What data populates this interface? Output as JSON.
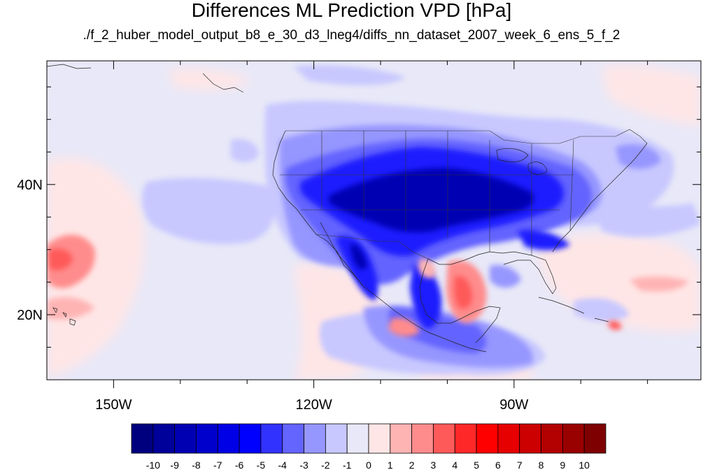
{
  "title": "Differences ML Prediction VPD [hPa]",
  "subtitle": "./f_2_huber_model_output_b8_e_30_d3_lneg4/diffs_nn_dataset_2007_week_6_ens_5_f_2",
  "map": {
    "extent": {
      "lon": [
        -160,
        -62
      ],
      "lat": [
        10,
        59
      ]
    },
    "lat_ticks": [
      {
        "value": 40,
        "label": "40N"
      },
      {
        "value": 20,
        "label": "20N"
      }
    ],
    "lon_ticks": [
      {
        "value": -150,
        "label": "150W"
      },
      {
        "value": -120,
        "label": "120W"
      },
      {
        "value": -90,
        "label": "90W"
      }
    ],
    "minor_lat_ticks": [
      15,
      25,
      30,
      35,
      45,
      50,
      55
    ],
    "minor_lon_ticks": [
      -140,
      -130,
      -110,
      -100,
      -80,
      -70
    ]
  },
  "colorbar": {
    "levels": [
      "-10",
      "-9",
      "-8",
      "-7",
      "-6",
      "-5",
      "-4",
      "-3",
      "-2",
      "-1",
      "0",
      "1",
      "2",
      "3",
      "4",
      "5",
      "6",
      "7",
      "8",
      "9",
      "10"
    ],
    "colors": [
      "#00007f",
      "#00009a",
      "#0000b3",
      "#0000cc",
      "#0000e6",
      "#0000ff",
      "#3232ff",
      "#6464ff",
      "#9696ff",
      "#c8c8ff",
      "#e8e8f8",
      "#ffe6e6",
      "#ffb4b4",
      "#ff8c8c",
      "#ff5a5a",
      "#ff2828",
      "#ff0000",
      "#e60000",
      "#cc0000",
      "#b30000",
      "#990000",
      "#7f0000"
    ]
  },
  "chart_data": {
    "type": "heatmap",
    "title": "Differences ML Prediction VPD [hPa]",
    "subtitle": "./f_2_huber_model_output_b8_e_30_d3_lneg4/diffs_nn_dataset_2007_week_6_ens_5_f_2",
    "variable_units": "hPa",
    "xlim": [
      -160,
      -62
    ],
    "ylim": [
      10,
      59
    ],
    "contour_levels": [
      -10,
      -9,
      -8,
      -7,
      -6,
      -5,
      -4,
      -3,
      -2,
      -1,
      0,
      1,
      2,
      3,
      4,
      5,
      6,
      7,
      8,
      9,
      10
    ],
    "x_ticks": [
      "150W",
      "120W",
      "90W"
    ],
    "y_ticks": [
      "40N",
      "20N"
    ]
  }
}
